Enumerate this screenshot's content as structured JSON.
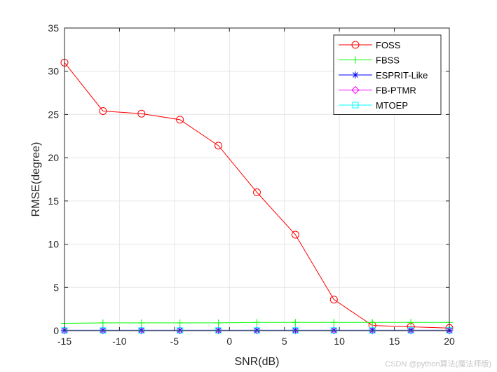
{
  "chart_data": {
    "type": "line",
    "xlabel": "SNR(dB)",
    "ylabel": "RMSE(degree)",
    "xlim": [
      -15,
      20
    ],
    "ylim": [
      0,
      35
    ],
    "xticks": [
      -15,
      -10,
      -5,
      0,
      5,
      10,
      15,
      20
    ],
    "yticks": [
      0,
      5,
      10,
      15,
      20,
      25,
      30,
      35
    ],
    "grid": true,
    "legend_position": "top-right",
    "x": [
      -15,
      -11.5,
      -8,
      -4.5,
      -1,
      2.5,
      6,
      9.5,
      13,
      16.5,
      20
    ],
    "series": [
      {
        "name": "FOSS",
        "color": "#ff0000",
        "marker": "circle",
        "values": [
          31.0,
          25.4,
          25.1,
          24.4,
          21.4,
          16.0,
          11.1,
          3.6,
          0.6,
          0.45,
          0.3
        ]
      },
      {
        "name": "FBSS",
        "color": "#00ff00",
        "marker": "plus",
        "values": [
          0.85,
          0.9,
          0.9,
          0.9,
          0.9,
          0.95,
          0.95,
          0.95,
          0.95,
          0.95,
          0.95
        ]
      },
      {
        "name": "ESPRIT-Like",
        "color": "#0000ff",
        "marker": "asterisk",
        "values": [
          0.05,
          0.05,
          0.05,
          0.05,
          0.05,
          0.05,
          0.05,
          0.05,
          0.05,
          0.05,
          0.05
        ]
      },
      {
        "name": "FB-PTMR",
        "color": "#ff00ff",
        "marker": "diamond",
        "values": [
          0.03,
          0.03,
          0.03,
          0.03,
          0.03,
          0.03,
          0.03,
          0.03,
          0.03,
          0.03,
          0.03
        ]
      },
      {
        "name": "MTOEP",
        "color": "#00ffff",
        "marker": "square",
        "values": [
          0.02,
          0.02,
          0.02,
          0.02,
          0.02,
          0.02,
          0.02,
          0.02,
          0.02,
          0.02,
          0.02
        ]
      }
    ]
  },
  "watermark": "CSDN @python算法(魔法师版)"
}
